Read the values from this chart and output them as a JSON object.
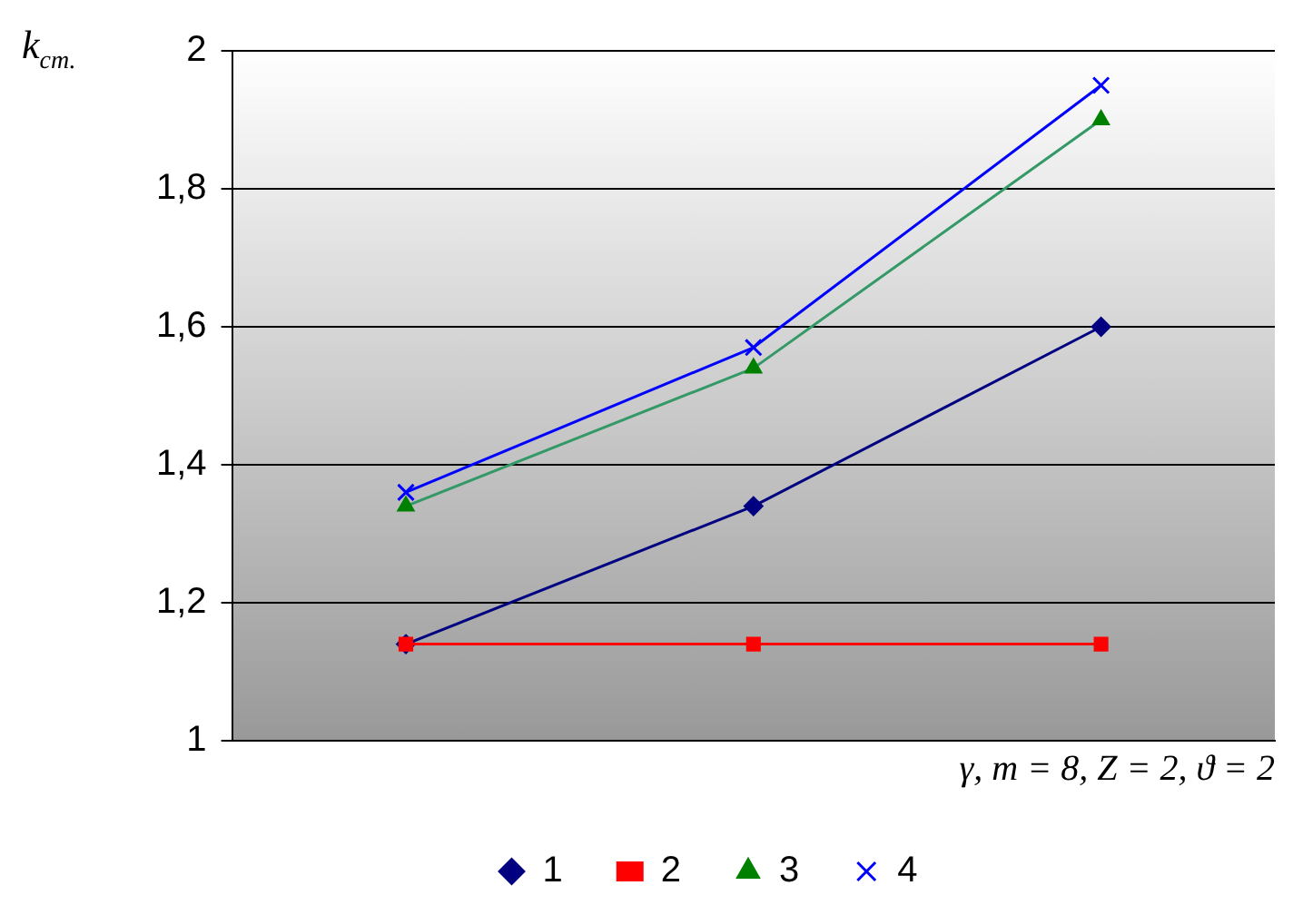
{
  "chart_data": {
    "type": "line",
    "ylabel": "k$_{ст.}$",
    "xlabel": "γ, m = 8, Z = 2, ϑ = 2",
    "categories": [
      null,
      null,
      null
    ],
    "series": [
      {
        "name": "1",
        "color": "#000080",
        "marker": "diamond",
        "values": [
          1.14,
          1.34,
          1.6
        ]
      },
      {
        "name": "2",
        "color": "#ff0000",
        "marker": "square",
        "values": [
          1.14,
          1.14,
          1.14
        ]
      },
      {
        "name": "3",
        "color": "#339966",
        "marker": "triangle",
        "values": [
          1.34,
          1.54,
          1.9
        ]
      },
      {
        "name": "4",
        "color": "#0000ff",
        "marker": "cross",
        "values": [
          1.36,
          1.57,
          1.95
        ]
      }
    ],
    "ylim": [
      1,
      2
    ],
    "yticks": [
      1,
      {
        "value": 1.2,
        "label": "1,2"
      },
      {
        "value": 1.4,
        "label": "1,4"
      },
      {
        "value": 1.6,
        "label": "1,6"
      },
      {
        "value": 1.8,
        "label": "1,8"
      },
      2
    ],
    "tick_labels": "y",
    "grid": "y",
    "legend": "bottom"
  }
}
